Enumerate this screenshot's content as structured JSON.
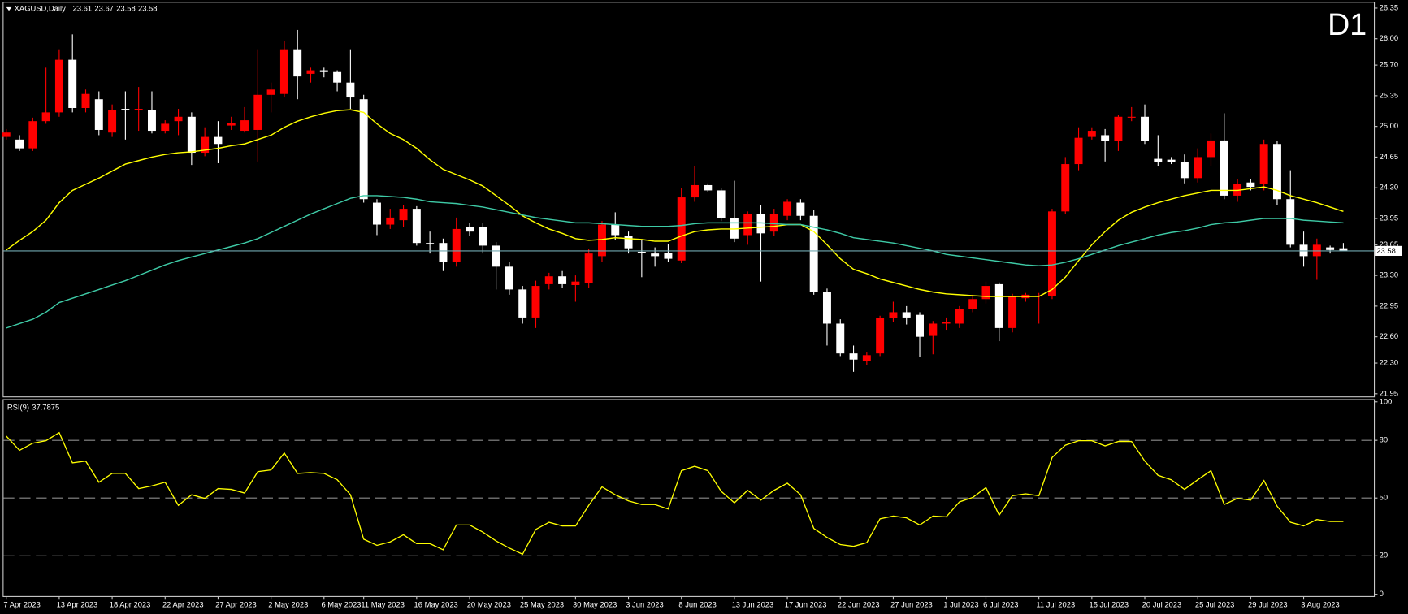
{
  "chart_data": [
    {
      "type": "candlestick",
      "title": "XAGUSD,Daily",
      "timeframe": "D1",
      "up_color": "#ff0000",
      "down_color": "#ffffff",
      "price_line_color": "#6fa8b0",
      "categories": [
        "7 Apr 2023",
        null,
        null,
        null,
        "13 Apr 2023",
        null,
        null,
        null,
        "18 Apr 2023",
        null,
        null,
        null,
        "22 Apr 2023",
        null,
        null,
        null,
        "27 Apr 2023",
        null,
        null,
        null,
        "2 May 2023",
        null,
        null,
        null,
        "6 May 2023",
        null,
        null,
        "11 May 2023",
        null,
        null,
        null,
        "16 May 2023",
        null,
        null,
        null,
        "20 May 2023",
        null,
        null,
        null,
        "25 May 2023",
        null,
        null,
        null,
        "30 May 2023",
        null,
        null,
        null,
        "3 Jun 2023",
        null,
        null,
        null,
        "8 Jun 2023",
        null,
        null,
        null,
        "13 Jun 2023",
        null,
        null,
        null,
        "17 Jun 2023",
        null,
        null,
        null,
        "22 Jun 2023",
        null,
        null,
        null,
        "27 Jun 2023",
        null,
        null,
        null,
        "1 Jul 2023",
        null,
        null,
        "6 Jul 2023",
        null,
        null,
        null,
        "11 Jul 2023",
        null,
        null,
        null,
        "15 Jul 2023",
        null,
        null,
        null,
        "20 Jul 2023",
        null,
        null,
        null,
        "25 Jul 2023",
        null,
        null,
        null,
        "29 Jul 2023",
        null,
        null,
        null,
        "3 Aug 2023",
        null,
        null,
        null
      ],
      "open": [
        24.88,
        24.85,
        24.75,
        25.06,
        25.16,
        25.76,
        25.21,
        25.31,
        24.93,
        25.2,
        25.19,
        25.19,
        24.95,
        25.06,
        25.11,
        24.7,
        24.88,
        25.01,
        24.95,
        24.96,
        25.36,
        25.37,
        25.88,
        25.6,
        25.64,
        25.62,
        25.5,
        25.31,
        24.13,
        23.88,
        23.93,
        24.06,
        23.67,
        23.67,
        23.45,
        23.85,
        23.85,
        23.64,
        23.4,
        23.14,
        22.82,
        23.2,
        23.29,
        23.19,
        23.21,
        23.52,
        23.88,
        23.75,
        23.57,
        23.55,
        23.56,
        23.47,
        24.19,
        24.33,
        24.27,
        23.95,
        23.76,
        24.0,
        23.8,
        23.98,
        24.13,
        23.98,
        23.11,
        22.75,
        22.41,
        22.32,
        22.41,
        22.81,
        22.88,
        22.85,
        22.61,
        22.75,
        22.75,
        22.92,
        23.03,
        23.2,
        22.7,
        23.04,
        23.07,
        23.06,
        24.03,
        24.57,
        24.88,
        24.9,
        24.83,
        25.1,
        25.11,
        24.63,
        24.62,
        24.59,
        24.41,
        24.65,
        24.84,
        24.21,
        24.36,
        24.34,
        24.8,
        24.17,
        23.65,
        23.52,
        23.62,
        23.61
      ],
      "high": [
        24.97,
        24.9,
        25.1,
        25.67,
        25.88,
        26.05,
        25.42,
        25.4,
        25.25,
        25.4,
        25.45,
        25.4,
        25.07,
        25.2,
        25.16,
        24.99,
        25.06,
        25.11,
        25.22,
        25.88,
        25.5,
        25.97,
        26.1,
        25.67,
        25.67,
        25.64,
        25.88,
        25.36,
        24.17,
        24.06,
        24.1,
        24.09,
        23.8,
        23.72,
        23.96,
        23.9,
        23.9,
        23.68,
        23.45,
        23.18,
        23.24,
        23.33,
        23.35,
        23.3,
        23.6,
        23.92,
        24.02,
        23.8,
        23.7,
        23.62,
        23.66,
        24.3,
        24.55,
        24.35,
        24.3,
        24.38,
        24.03,
        24.1,
        24.06,
        24.17,
        24.17,
        24.05,
        23.15,
        22.8,
        22.5,
        22.42,
        22.84,
        23.0,
        22.95,
        22.88,
        22.78,
        22.82,
        22.95,
        23.08,
        23.23,
        23.22,
        23.09,
        23.1,
        23.1,
        24.06,
        24.65,
        24.99,
        24.99,
        24.97,
        25.13,
        25.22,
        25.25,
        24.9,
        24.65,
        24.68,
        24.75,
        24.92,
        25.15,
        24.4,
        24.4,
        24.85,
        24.83,
        24.5,
        23.8,
        23.72,
        23.64,
        23.67
      ],
      "low": [
        24.85,
        24.72,
        24.72,
        25.03,
        25.11,
        25.16,
        25.16,
        24.9,
        24.88,
        24.85,
        24.95,
        24.92,
        24.92,
        24.9,
        24.56,
        24.66,
        24.58,
        24.96,
        24.93,
        24.6,
        25.16,
        25.33,
        25.31,
        25.5,
        25.56,
        25.4,
        25.2,
        24.13,
        23.76,
        23.83,
        23.85,
        23.64,
        23.55,
        23.35,
        23.4,
        23.75,
        23.55,
        23.14,
        23.08,
        22.75,
        22.7,
        23.14,
        23.16,
        23.0,
        23.16,
        23.45,
        23.7,
        23.55,
        23.28,
        23.4,
        23.45,
        23.44,
        24.14,
        24.25,
        23.92,
        23.68,
        23.65,
        23.23,
        23.75,
        23.93,
        23.93,
        23.08,
        22.5,
        22.38,
        22.2,
        22.28,
        22.38,
        22.77,
        22.74,
        22.37,
        22.4,
        22.68,
        22.7,
        22.88,
        22.98,
        22.55,
        22.65,
        23.0,
        22.75,
        23.03,
        24.0,
        24.5,
        24.85,
        24.6,
        24.72,
        25.06,
        24.8,
        24.55,
        24.57,
        24.35,
        24.36,
        24.55,
        24.17,
        24.14,
        24.27,
        24.27,
        24.1,
        23.62,
        23.4,
        23.25,
        23.55,
        23.58
      ],
      "close": [
        24.93,
        24.75,
        25.06,
        25.16,
        25.76,
        25.21,
        25.37,
        24.96,
        25.19,
        25.19,
        25.2,
        24.95,
        25.03,
        25.11,
        24.7,
        24.88,
        24.8,
        25.04,
        25.07,
        25.36,
        25.42,
        25.88,
        25.57,
        25.64,
        25.62,
        25.5,
        25.33,
        24.17,
        23.88,
        23.96,
        24.06,
        23.67,
        23.66,
        23.45,
        23.83,
        23.8,
        23.64,
        23.4,
        23.14,
        22.82,
        23.18,
        23.29,
        23.2,
        23.23,
        23.55,
        23.88,
        23.76,
        23.61,
        23.56,
        23.52,
        23.49,
        24.19,
        24.33,
        24.27,
        23.95,
        23.72,
        24.0,
        23.78,
        24.0,
        24.14,
        23.98,
        23.11,
        22.75,
        22.41,
        22.34,
        22.39,
        22.81,
        22.88,
        22.82,
        22.6,
        22.75,
        22.77,
        22.92,
        23.03,
        23.18,
        22.7,
        23.06,
        23.08,
        23.07,
        24.03,
        24.57,
        24.87,
        24.95,
        24.83,
        25.11,
        25.11,
        24.83,
        24.59,
        24.59,
        24.41,
        24.65,
        24.84,
        24.21,
        24.34,
        24.31,
        24.8,
        24.17,
        23.65,
        23.52,
        23.65,
        23.59,
        23.58
      ],
      "series": [
        {
          "color": "#ffff00",
          "values": [
            23.59,
            23.7,
            23.8,
            23.93,
            24.13,
            24.27,
            24.34,
            24.41,
            24.49,
            24.57,
            24.61,
            24.65,
            24.68,
            24.7,
            24.71,
            24.73,
            24.75,
            24.78,
            24.8,
            24.85,
            24.9,
            24.99,
            25.06,
            25.11,
            25.15,
            25.18,
            25.19,
            25.16,
            25.03,
            24.92,
            24.85,
            24.75,
            24.62,
            24.51,
            24.45,
            24.39,
            24.32,
            24.21,
            24.1,
            23.98,
            23.9,
            23.83,
            23.78,
            23.72,
            23.7,
            23.71,
            23.73,
            23.72,
            23.71,
            23.69,
            23.69,
            23.75,
            23.8,
            23.82,
            23.83,
            23.83,
            23.84,
            23.85,
            23.86,
            23.88,
            23.88,
            23.8,
            23.65,
            23.49,
            23.37,
            23.32,
            23.26,
            23.22,
            23.18,
            23.14,
            23.11,
            23.09,
            23.08,
            23.07,
            23.06,
            23.06,
            23.06,
            23.06,
            23.06,
            23.14,
            23.28,
            23.47,
            23.65,
            23.8,
            23.93,
            24.02,
            24.08,
            24.13,
            24.17,
            24.21,
            24.24,
            24.27,
            24.27,
            24.27,
            24.29,
            24.31,
            24.27,
            24.21,
            24.17,
            24.13,
            24.08,
            24.03
          ]
        },
        {
          "color": "#3ecaa6",
          "values": [
            22.7,
            22.75,
            22.8,
            22.88,
            22.99,
            23.04,
            23.09,
            23.14,
            23.19,
            23.24,
            23.3,
            23.36,
            23.42,
            23.47,
            23.51,
            23.55,
            23.59,
            23.63,
            23.67,
            23.72,
            23.79,
            23.86,
            23.93,
            24.0,
            24.06,
            24.12,
            24.18,
            24.21,
            24.21,
            24.2,
            24.19,
            24.17,
            24.14,
            24.13,
            24.12,
            24.1,
            24.08,
            24.05,
            24.02,
            23.99,
            23.96,
            23.94,
            23.92,
            23.9,
            23.9,
            23.89,
            23.88,
            23.87,
            23.86,
            23.86,
            23.86,
            23.87,
            23.89,
            23.9,
            23.9,
            23.9,
            23.9,
            23.9,
            23.89,
            23.88,
            23.88,
            23.85,
            23.82,
            23.78,
            23.73,
            23.71,
            23.69,
            23.67,
            23.64,
            23.61,
            23.58,
            23.54,
            23.52,
            23.5,
            23.48,
            23.46,
            23.44,
            23.42,
            23.41,
            23.42,
            23.45,
            23.49,
            23.54,
            23.59,
            23.64,
            23.68,
            23.72,
            23.76,
            23.79,
            23.81,
            23.84,
            23.88,
            23.9,
            23.91,
            23.93,
            23.95,
            23.95,
            23.95,
            23.93,
            23.92,
            23.91,
            23.9
          ]
        }
      ],
      "ylim": [
        21.95,
        26.35
      ],
      "yticks": [
        21.95,
        {
          "value": 22.3,
          "label": "22.30"
        },
        {
          "value": 22.6,
          "label": "22.60"
        },
        22.95,
        {
          "value": 23.3,
          "label": "23.30"
        },
        23.65,
        23.95,
        {
          "value": 24.3,
          "label": "24.30"
        },
        24.65,
        {
          "value": 25,
          "label": "25.00"
        },
        25.35,
        {
          "value": 25.7,
          "label": "25.70"
        },
        {
          "value": 26,
          "label": "26.00"
        },
        26.35
      ]
    },
    {
      "type": "line",
      "title": "RSI(9)",
      "level_color": "#8c8c8c",
      "series": [
        {
          "color": "#ffff00",
          "values": [
            82.2,
            74.8,
            78.5,
            79.8,
            84.0,
            68.3,
            69.2,
            58.2,
            62.8,
            62.8,
            54.9,
            56.3,
            58.2,
            46.2,
            51.7,
            49.8,
            54.9,
            54.5,
            52.6,
            63.7,
            64.6,
            73.4,
            62.8,
            63.2,
            62.8,
            59.5,
            51.7,
            28.6,
            25.4,
            27.2,
            30.9,
            26.3,
            26.3,
            23.1,
            36.0,
            36.0,
            32.3,
            27.7,
            24.0,
            20.8,
            33.7,
            37.4,
            35.5,
            35.5,
            46.2,
            55.8,
            51.7,
            48.5,
            46.6,
            46.6,
            44.3,
            64.2,
            66.5,
            64.2,
            53.5,
            47.5,
            54.0,
            48.9,
            54.0,
            57.7,
            51.7,
            34.2,
            29.5,
            25.8,
            24.9,
            26.8,
            39.2,
            40.6,
            39.7,
            36.0,
            40.6,
            40.2,
            48.0,
            50.3,
            55.4,
            41.1,
            51.2,
            52.2,
            51.2,
            71.1,
            77.5,
            79.8,
            79.8,
            77.1,
            79.4,
            79.4,
            69.2,
            61.8,
            59.5,
            54.5,
            59.5,
            64.2,
            46.6,
            49.8,
            48.9,
            59.1,
            45.7,
            37.4,
            35.5,
            38.8,
            37.8,
            37.7875
          ]
        }
      ],
      "ylim": [
        0,
        100
      ],
      "yticks": [
        0,
        20,
        50,
        80,
        100
      ]
    }
  ]
}
